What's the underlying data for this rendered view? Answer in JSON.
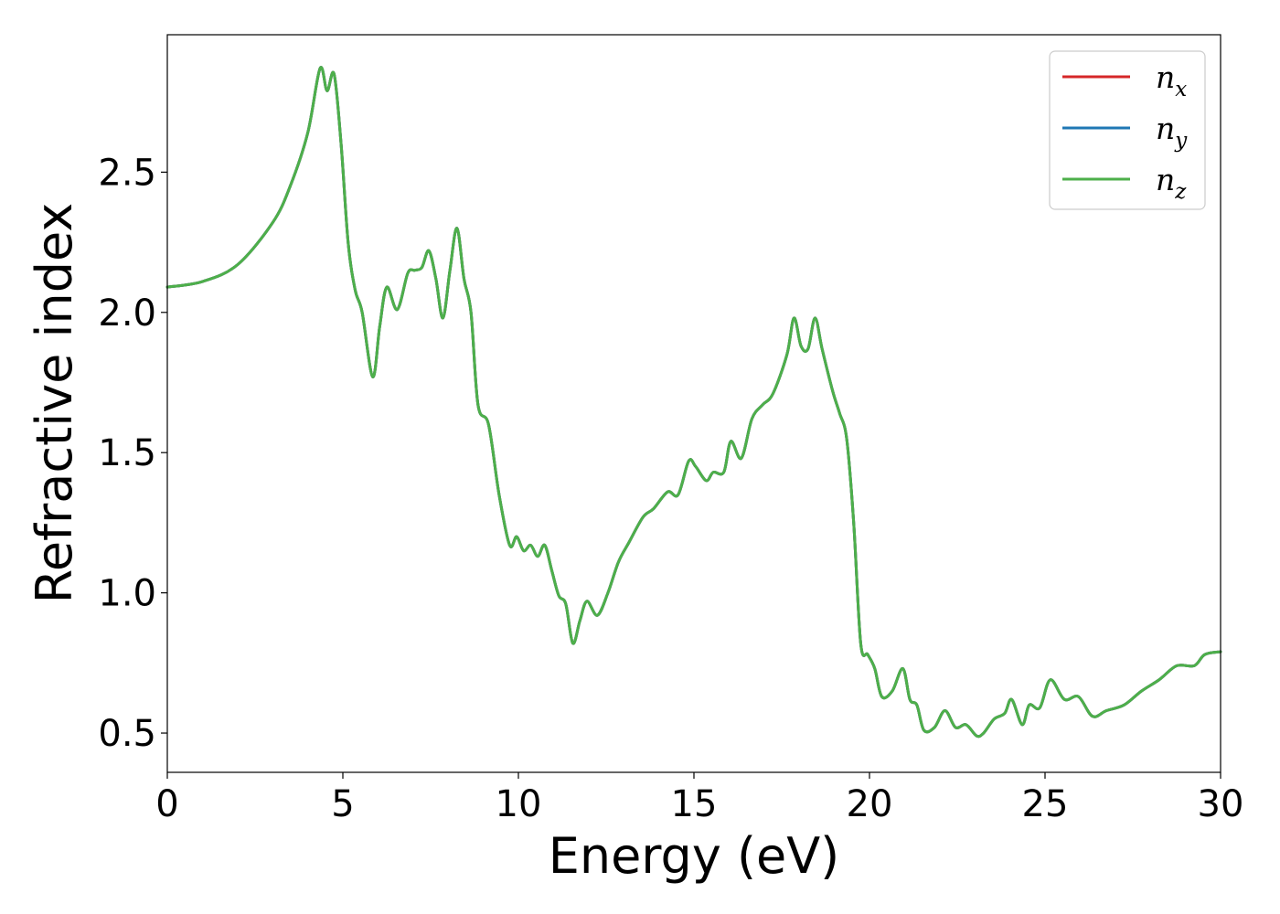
{
  "chart_data": {
    "type": "line",
    "title": "",
    "xlabel": "Energy (eV)",
    "ylabel": "Refractive index",
    "xlim": [
      0,
      30
    ],
    "ylim": [
      0.36,
      2.99
    ],
    "xticks": [
      0,
      5,
      10,
      15,
      20,
      25,
      30
    ],
    "xtick_labels": [
      "0",
      "5",
      "10",
      "15",
      "20",
      "25",
      "30"
    ],
    "yticks": [
      0.5,
      1.0,
      1.5,
      2.0,
      2.5
    ],
    "ytick_labels": [
      "0.5",
      "1.0",
      "1.5",
      "2.0",
      "2.5"
    ],
    "grid": false,
    "legend": {
      "placement": "top-right",
      "entries": [
        {
          "label": "n",
          "sub": "x",
          "color": "#d62728"
        },
        {
          "label": "n",
          "sub": "y",
          "color": "#1f77b4"
        },
        {
          "label": "n",
          "sub": "z",
          "color": "#4daf4a"
        }
      ]
    },
    "x": [
      0,
      1,
      2,
      3,
      3.5,
      4,
      4.35,
      4.55,
      4.75,
      4.95,
      5.15,
      5.35,
      5.55,
      5.85,
      6.05,
      6.25,
      6.55,
      6.85,
      7.05,
      7.25,
      7.45,
      7.65,
      7.85,
      8.05,
      8.25,
      8.45,
      8.65,
      8.85,
      9.15,
      9.45,
      9.75,
      9.95,
      10.15,
      10.35,
      10.55,
      10.75,
      10.95,
      11.15,
      11.35,
      11.55,
      11.75,
      11.95,
      12.25,
      12.55,
      12.85,
      13.15,
      13.55,
      13.85,
      14.25,
      14.55,
      14.85,
      15.05,
      15.35,
      15.55,
      15.85,
      16.05,
      16.35,
      16.65,
      16.95,
      17.25,
      17.65,
      17.85,
      18.05,
      18.25,
      18.45,
      18.65,
      18.95,
      19.15,
      19.35,
      19.55,
      19.75,
      19.95,
      20.15,
      20.35,
      20.65,
      20.95,
      21.15,
      21.35,
      21.55,
      21.85,
      22.15,
      22.45,
      22.75,
      23.05,
      23.25,
      23.55,
      23.85,
      24.05,
      24.35,
      24.55,
      24.85,
      25.15,
      25.55,
      25.95,
      26.35,
      26.75,
      27.25,
      27.75,
      28.25,
      28.75,
      29.25,
      29.55,
      30
    ],
    "series": [
      {
        "name": "n_x",
        "color": "#d62728",
        "values": [
          2.09,
          2.11,
          2.17,
          2.32,
          2.45,
          2.64,
          2.87,
          2.79,
          2.85,
          2.6,
          2.25,
          2.08,
          2.0,
          1.77,
          1.95,
          2.09,
          2.01,
          2.14,
          2.15,
          2.16,
          2.22,
          2.12,
          1.98,
          2.15,
          2.3,
          2.12,
          2.0,
          1.67,
          1.6,
          1.35,
          1.17,
          1.2,
          1.15,
          1.17,
          1.13,
          1.17,
          1.08,
          0.99,
          0.96,
          0.82,
          0.9,
          0.97,
          0.92,
          1.0,
          1.11,
          1.18,
          1.27,
          1.3,
          1.36,
          1.35,
          1.47,
          1.45,
          1.4,
          1.43,
          1.43,
          1.54,
          1.48,
          1.62,
          1.67,
          1.71,
          1.85,
          1.98,
          1.88,
          1.87,
          1.98,
          1.87,
          1.72,
          1.64,
          1.55,
          1.25,
          0.82,
          0.78,
          0.73,
          0.63,
          0.65,
          0.73,
          0.62,
          0.6,
          0.51,
          0.52,
          0.58,
          0.52,
          0.53,
          0.49,
          0.5,
          0.55,
          0.57,
          0.62,
          0.53,
          0.6,
          0.59,
          0.69,
          0.62,
          0.63,
          0.56,
          0.58,
          0.6,
          0.65,
          0.69,
          0.74,
          0.74,
          0.78,
          0.79
        ]
      },
      {
        "name": "n_y",
        "color": "#1f77b4",
        "values": [
          2.09,
          2.11,
          2.17,
          2.32,
          2.45,
          2.64,
          2.87,
          2.79,
          2.85,
          2.6,
          2.25,
          2.08,
          2.0,
          1.77,
          1.95,
          2.09,
          2.01,
          2.14,
          2.15,
          2.16,
          2.22,
          2.12,
          1.98,
          2.15,
          2.3,
          2.12,
          2.0,
          1.67,
          1.6,
          1.35,
          1.17,
          1.2,
          1.15,
          1.17,
          1.13,
          1.17,
          1.08,
          0.99,
          0.96,
          0.82,
          0.9,
          0.97,
          0.92,
          1.0,
          1.11,
          1.18,
          1.27,
          1.3,
          1.36,
          1.35,
          1.47,
          1.45,
          1.4,
          1.43,
          1.43,
          1.54,
          1.48,
          1.62,
          1.67,
          1.71,
          1.85,
          1.98,
          1.88,
          1.87,
          1.98,
          1.87,
          1.72,
          1.64,
          1.55,
          1.25,
          0.82,
          0.78,
          0.73,
          0.63,
          0.65,
          0.73,
          0.62,
          0.6,
          0.51,
          0.52,
          0.58,
          0.52,
          0.53,
          0.49,
          0.5,
          0.55,
          0.57,
          0.62,
          0.53,
          0.6,
          0.59,
          0.69,
          0.62,
          0.63,
          0.56,
          0.58,
          0.6,
          0.65,
          0.69,
          0.74,
          0.74,
          0.78,
          0.79
        ]
      },
      {
        "name": "n_z",
        "color": "#4daf4a",
        "values": [
          2.09,
          2.11,
          2.17,
          2.32,
          2.45,
          2.64,
          2.87,
          2.79,
          2.85,
          2.6,
          2.25,
          2.08,
          2.0,
          1.77,
          1.95,
          2.09,
          2.01,
          2.14,
          2.15,
          2.16,
          2.22,
          2.12,
          1.98,
          2.15,
          2.3,
          2.12,
          2.0,
          1.67,
          1.6,
          1.35,
          1.17,
          1.2,
          1.15,
          1.17,
          1.13,
          1.17,
          1.08,
          0.99,
          0.96,
          0.82,
          0.9,
          0.97,
          0.92,
          1.0,
          1.11,
          1.18,
          1.27,
          1.3,
          1.36,
          1.35,
          1.47,
          1.45,
          1.4,
          1.43,
          1.43,
          1.54,
          1.48,
          1.62,
          1.67,
          1.71,
          1.85,
          1.98,
          1.88,
          1.87,
          1.98,
          1.87,
          1.72,
          1.64,
          1.55,
          1.25,
          0.82,
          0.78,
          0.73,
          0.63,
          0.65,
          0.73,
          0.62,
          0.6,
          0.51,
          0.52,
          0.58,
          0.52,
          0.53,
          0.49,
          0.5,
          0.55,
          0.57,
          0.62,
          0.53,
          0.6,
          0.59,
          0.69,
          0.62,
          0.63,
          0.56,
          0.58,
          0.6,
          0.65,
          0.69,
          0.74,
          0.74,
          0.78,
          0.79
        ]
      }
    ]
  }
}
